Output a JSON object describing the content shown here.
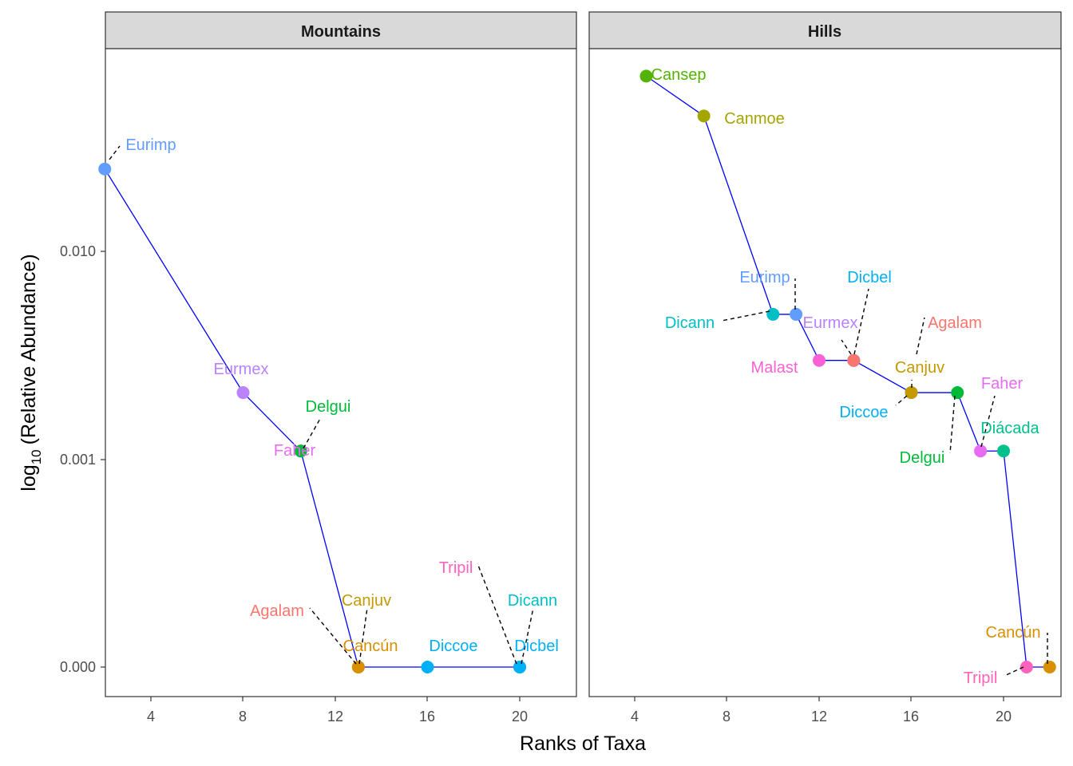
{
  "chart_data": {
    "type": "scatter",
    "xlabel": "Ranks of Taxa",
    "ylabel": "log10 (Relative Abundance)",
    "ylabel_parts": {
      "pre": "log",
      "sub": "10",
      "post": "(Relative Abundance)"
    },
    "y_scale": "log-like",
    "y_ticks": [
      "0.000",
      "0.001",
      "0.010"
    ],
    "x_ticks": [
      "4",
      "8",
      "12",
      "16",
      "20"
    ],
    "grid": false,
    "legend": "none",
    "line_color": "#0000ff",
    "panels": [
      {
        "title": "Mountains",
        "xlim": [
          2,
          22.5
        ],
        "points": [
          {
            "name": "Eurimp",
            "x": 2,
            "y": 0.025,
            "color": "#619cff"
          },
          {
            "name": "Eurmex",
            "x": 8,
            "y": 0.0021,
            "color": "#b983ff"
          },
          {
            "name": "Faher",
            "x": 10.5,
            "y": 0.0011,
            "color": "#e76bf3"
          },
          {
            "name": "Delgui",
            "x": 10.5,
            "y": 0.0011,
            "color": "#00ba38"
          },
          {
            "name": "Agalam",
            "x": 13,
            "y": 0.0,
            "color": "#f8766d"
          },
          {
            "name": "Canjuv",
            "x": 13,
            "y": 0.0,
            "color": "#c49a00"
          },
          {
            "name": "Cancún",
            "x": 13,
            "y": 0.0,
            "color": "#d89000"
          },
          {
            "name": "Diccoe",
            "x": 16,
            "y": 0.0,
            "color": "#00b0f6"
          },
          {
            "name": "Tripil",
            "x": 20,
            "y": 0.0,
            "color": "#ff62bc"
          },
          {
            "name": "Dicann",
            "x": 20,
            "y": 0.0,
            "color": "#00bfc4"
          },
          {
            "name": "Dicbel",
            "x": 20,
            "y": 0.0,
            "color": "#00b0f6"
          }
        ]
      },
      {
        "title": "Hills",
        "xlim": [
          2,
          22.5
        ],
        "points": [
          {
            "name": "Cansep",
            "x": 4.5,
            "y": 0.07,
            "color": "#53b400"
          },
          {
            "name": "Canmoe",
            "x": 7,
            "y": 0.045,
            "color": "#a3a500"
          },
          {
            "name": "Dicann",
            "x": 10,
            "y": 0.005,
            "color": "#00bfc4"
          },
          {
            "name": "Eurimp",
            "x": 11,
            "y": 0.005,
            "color": "#619cff"
          },
          {
            "name": "Malast",
            "x": 12,
            "y": 0.003,
            "color": "#fb61d7"
          },
          {
            "name": "Eurmex",
            "x": 13.5,
            "y": 0.003,
            "color": "#b983ff"
          },
          {
            "name": "Dicbel",
            "x": 13.5,
            "y": 0.003,
            "color": "#00b0f6"
          },
          {
            "name": "Agalam",
            "x": 13.5,
            "y": 0.003,
            "color": "#f8766d"
          },
          {
            "name": "Diccoe",
            "x": 16,
            "y": 0.0021,
            "color": "#00b0f6"
          },
          {
            "name": "Canjuv",
            "x": 16,
            "y": 0.0021,
            "color": "#c49a00"
          },
          {
            "name": "Delgui",
            "x": 18,
            "y": 0.0021,
            "color": "#00ba38"
          },
          {
            "name": "Faher",
            "x": 19,
            "y": 0.0011,
            "color": "#e76bf3"
          },
          {
            "name": "Diácada",
            "x": 20,
            "y": 0.0011,
            "color": "#00c08b"
          },
          {
            "name": "Tripil",
            "x": 21,
            "y": 0.0,
            "color": "#ff62bc"
          },
          {
            "name": "Cancún",
            "x": 22,
            "y": 0.0,
            "color": "#d89000"
          }
        ]
      }
    ]
  }
}
